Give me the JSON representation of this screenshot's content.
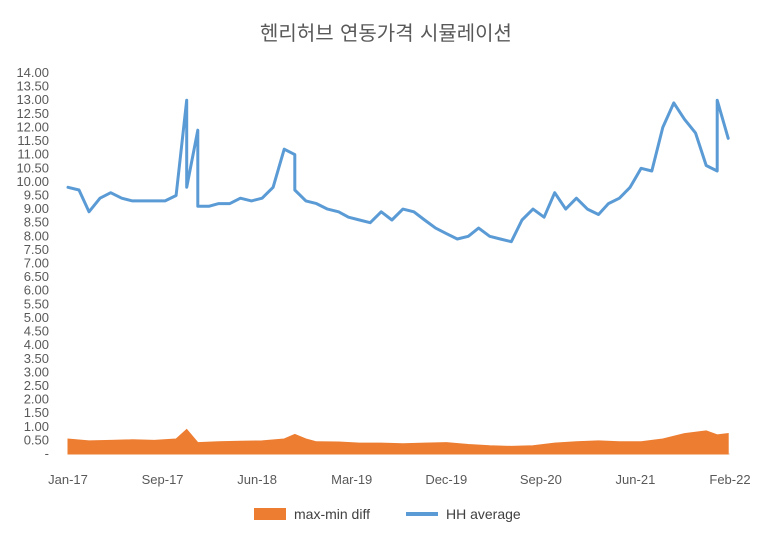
{
  "chart_data": {
    "type": "line",
    "title": "헨리허브 연동가격 시뮬레이션",
    "xlabel": "",
    "ylabel": "",
    "ylim": [
      0,
      14
    ],
    "y_ticks": [
      "-",
      "0.50",
      "1.00",
      "1.50",
      "2.00",
      "2.50",
      "3.00",
      "3.50",
      "4.00",
      "4.50",
      "5.00",
      "5.50",
      "6.00",
      "6.50",
      "7.00",
      "7.50",
      "8.00",
      "8.50",
      "9.00",
      "9.50",
      "10.00",
      "10.50",
      "11.00",
      "11.50",
      "12.00",
      "12.50",
      "13.00",
      "13.50",
      "14.00"
    ],
    "x_ticks": [
      "Jan-17",
      "Sep-17",
      "Jun-18",
      "Mar-19",
      "Dec-19",
      "Sep-20",
      "Jun-21",
      "Feb-22"
    ],
    "legend_position": "bottom",
    "grid": false,
    "series": [
      {
        "name": "max-min diff",
        "type": "area",
        "color": "#ED7D31",
        "x": [
          "2017-01",
          "2017-03",
          "2017-05",
          "2017-07",
          "2017-09",
          "2017-11",
          "2017-12",
          "2018-01",
          "2018-03",
          "2018-05",
          "2018-07",
          "2018-09",
          "2018-10",
          "2018-11",
          "2018-12",
          "2019-02",
          "2019-04",
          "2019-06",
          "2019-08",
          "2019-10",
          "2019-12",
          "2020-02",
          "2020-04",
          "2020-06",
          "2020-08",
          "2020-10",
          "2020-12",
          "2021-02",
          "2021-04",
          "2021-06",
          "2021-08",
          "2021-10",
          "2021-12",
          "2022-01",
          "2022-02"
        ],
        "values": [
          0.55,
          0.48,
          0.5,
          0.52,
          0.5,
          0.55,
          0.9,
          0.42,
          0.45,
          0.47,
          0.48,
          0.55,
          0.72,
          0.55,
          0.45,
          0.44,
          0.4,
          0.4,
          0.38,
          0.4,
          0.42,
          0.35,
          0.3,
          0.28,
          0.3,
          0.4,
          0.45,
          0.48,
          0.45,
          0.45,
          0.55,
          0.75,
          0.85,
          0.7,
          0.75
        ]
      },
      {
        "name": "HH average",
        "type": "line",
        "color": "#5B9BD5",
        "x": [
          "2017-01",
          "2017-02",
          "2017-03",
          "2017-04",
          "2017-05",
          "2017-06",
          "2017-07",
          "2017-08",
          "2017-09",
          "2017-10",
          "2017-11",
          "2017-12",
          "2017-12",
          "2018-01",
          "2018-01",
          "2018-02",
          "2018-03",
          "2018-04",
          "2018-05",
          "2018-06",
          "2018-07",
          "2018-08",
          "2018-09",
          "2018-10",
          "2018-10",
          "2018-11",
          "2018-12",
          "2019-01",
          "2019-02",
          "2019-03",
          "2019-04",
          "2019-05",
          "2019-06",
          "2019-07",
          "2019-08",
          "2019-09",
          "2019-10",
          "2019-11",
          "2019-12",
          "2020-01",
          "2020-02",
          "2020-03",
          "2020-04",
          "2020-05",
          "2020-06",
          "2020-07",
          "2020-08",
          "2020-09",
          "2020-10",
          "2020-11",
          "2020-12",
          "2021-01",
          "2021-02",
          "2021-03",
          "2021-04",
          "2021-05",
          "2021-06",
          "2021-07",
          "2021-08",
          "2021-09",
          "2021-10",
          "2021-11",
          "2021-12",
          "2022-01",
          "2022-01",
          "2022-02"
        ],
        "values": [
          9.8,
          9.7,
          8.9,
          9.4,
          9.6,
          9.4,
          9.3,
          9.3,
          9.3,
          9.3,
          9.5,
          13.0,
          9.8,
          11.9,
          9.1,
          9.1,
          9.2,
          9.2,
          9.4,
          9.3,
          9.4,
          9.8,
          11.2,
          11.0,
          9.7,
          9.3,
          9.2,
          9.0,
          8.9,
          8.7,
          8.6,
          8.5,
          8.9,
          8.6,
          9.0,
          8.9,
          8.6,
          8.3,
          8.1,
          7.9,
          8.0,
          8.3,
          8.0,
          7.9,
          7.8,
          8.6,
          9.0,
          8.7,
          9.6,
          9.0,
          9.4,
          9.0,
          8.8,
          9.2,
          9.4,
          9.8,
          10.5,
          10.4,
          12.0,
          12.9,
          12.3,
          11.8,
          10.6,
          10.4,
          13.0,
          11.6
        ]
      }
    ]
  }
}
